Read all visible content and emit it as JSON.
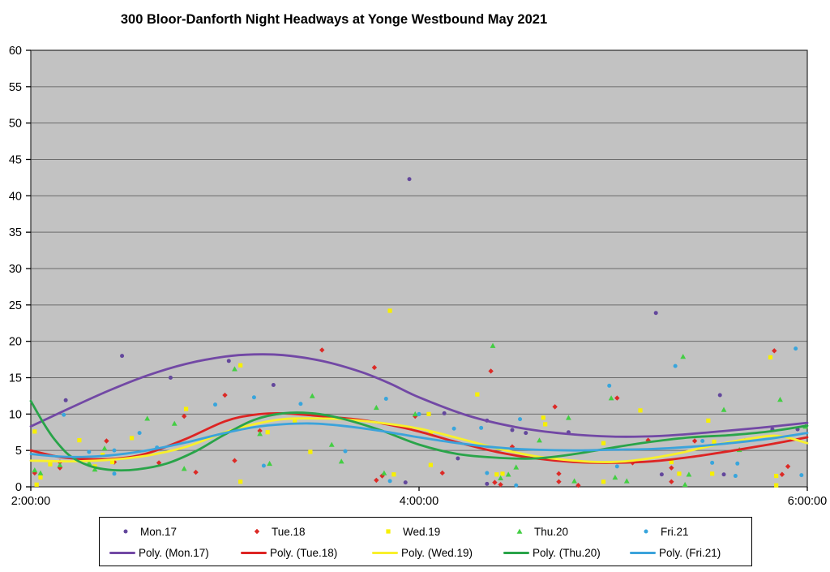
{
  "title": "300 Bloor-Danforth Night Headways at Yonge Westbound May 2021",
  "chart_data": {
    "type": "scatter",
    "title": "300 Bloor-Danforth Night Headways at Yonge Westbound May 2021",
    "xlabel": "",
    "ylabel": "",
    "x_axis": {
      "range_hours": [
        2,
        6
      ],
      "ticks": [
        {
          "label": "2:00:00",
          "t": 2
        },
        {
          "label": "4:00:00",
          "t": 4
        },
        {
          "label": "6:00:00",
          "t": 6
        }
      ]
    },
    "y_axis": {
      "min": 0,
      "max": 60,
      "step": 5,
      "ticks": [
        "0",
        "5",
        "10",
        "15",
        "20",
        "25",
        "30",
        "35",
        "40",
        "45",
        "50",
        "55",
        "60"
      ]
    },
    "grid": true,
    "legend_position": "bottom",
    "style": {
      "plot_bg": "#C2C2C2",
      "grid_color": "#6B6B6B",
      "border_color": "#2A2A2A",
      "axis_color": "#000000",
      "legend_border": "#000000",
      "legend_bg": "#FFFFFF"
    },
    "series": [
      {
        "name": "Mon.17",
        "kind": "scatter",
        "marker": "circle",
        "color": "#63479C",
        "points": [
          [
            2.18,
            11.9
          ],
          [
            2.47,
            18.0
          ],
          [
            2.72,
            15.0
          ],
          [
            3.02,
            17.3
          ],
          [
            3.25,
            14.0
          ],
          [
            3.95,
            42.3
          ],
          [
            3.93,
            0.6
          ],
          [
            4.13,
            10.1
          ],
          [
            4.2,
            3.9
          ],
          [
            4.35,
            9.1
          ],
          [
            4.35,
            0.4
          ],
          [
            4.48,
            7.8
          ],
          [
            4.55,
            7.4
          ],
          [
            4.77,
            7.5
          ],
          [
            5.22,
            23.9
          ],
          [
            5.25,
            1.7
          ],
          [
            5.55,
            12.6
          ],
          [
            5.57,
            1.7
          ],
          [
            5.68,
            6.4
          ],
          [
            5.82,
            7.9
          ],
          [
            5.95,
            7.9
          ]
        ]
      },
      {
        "name": "Tue.18",
        "kind": "scatter",
        "marker": "diamond",
        "color": "#DC2A26",
        "points": [
          [
            2.02,
            1.9
          ],
          [
            2.15,
            3.4
          ],
          [
            2.15,
            2.6
          ],
          [
            2.39,
            6.3
          ],
          [
            2.43,
            3.4
          ],
          [
            2.66,
            3.3
          ],
          [
            2.79,
            9.7
          ],
          [
            2.85,
            2.0
          ],
          [
            3.0,
            12.6
          ],
          [
            3.05,
            3.6
          ],
          [
            3.18,
            7.7
          ],
          [
            3.5,
            18.8
          ],
          [
            3.77,
            16.4
          ],
          [
            3.78,
            0.9
          ],
          [
            3.81,
            1.5
          ],
          [
            3.98,
            9.7
          ],
          [
            4.12,
            1.9
          ],
          [
            4.37,
            15.9
          ],
          [
            4.39,
            0.6
          ],
          [
            4.42,
            0.3
          ],
          [
            4.48,
            5.5
          ],
          [
            4.7,
            11.0
          ],
          [
            4.72,
            1.8
          ],
          [
            4.72,
            0.7
          ],
          [
            4.82,
            0.2
          ],
          [
            5.02,
            12.2
          ],
          [
            5.1,
            3.3
          ],
          [
            5.18,
            6.4
          ],
          [
            5.3,
            2.6
          ],
          [
            5.3,
            0.7
          ],
          [
            5.42,
            6.3
          ],
          [
            5.83,
            18.7
          ],
          [
            5.87,
            1.7
          ],
          [
            5.9,
            2.8
          ]
        ]
      },
      {
        "name": "Wed.19",
        "kind": "scatter",
        "marker": "square",
        "color": "#F7F000",
        "points": [
          [
            2.02,
            7.6
          ],
          [
            2.03,
            0.3
          ],
          [
            2.05,
            1.3
          ],
          [
            2.1,
            3.1
          ],
          [
            2.25,
            6.4
          ],
          [
            2.33,
            2.8
          ],
          [
            2.37,
            4.4
          ],
          [
            2.42,
            3.4
          ],
          [
            2.52,
            6.7
          ],
          [
            2.8,
            10.7
          ],
          [
            3.08,
            16.7
          ],
          [
            3.08,
            0.7
          ],
          [
            3.22,
            7.5
          ],
          [
            3.36,
            9.1
          ],
          [
            3.44,
            4.8
          ],
          [
            3.85,
            24.2
          ],
          [
            3.87,
            1.7
          ],
          [
            4.05,
            10.0
          ],
          [
            4.06,
            7.3
          ],
          [
            4.06,
            3.0
          ],
          [
            4.3,
            12.7
          ],
          [
            4.4,
            1.7
          ],
          [
            4.43,
            1.8
          ],
          [
            4.64,
            9.5
          ],
          [
            4.65,
            8.6
          ],
          [
            4.95,
            6.0
          ],
          [
            4.95,
            0.7
          ],
          [
            5.14,
            10.5
          ],
          [
            5.3,
            3.4
          ],
          [
            5.34,
            1.8
          ],
          [
            5.49,
            9.1
          ],
          [
            5.51,
            1.8
          ],
          [
            5.52,
            6.2
          ],
          [
            5.81,
            17.8
          ],
          [
            5.84,
            1.5
          ],
          [
            5.84,
            0.2
          ]
        ]
      },
      {
        "name": "Thu.20",
        "kind": "scatter",
        "marker": "triangle",
        "color": "#43CE43",
        "points": [
          [
            2.02,
            2.3
          ],
          [
            2.05,
            1.9
          ],
          [
            2.15,
            3.0
          ],
          [
            2.3,
            3.3
          ],
          [
            2.33,
            2.4
          ],
          [
            2.38,
            5.3
          ],
          [
            2.6,
            9.4
          ],
          [
            2.74,
            8.7
          ],
          [
            2.79,
            2.5
          ],
          [
            3.05,
            16.2
          ],
          [
            3.18,
            7.3
          ],
          [
            3.23,
            3.2
          ],
          [
            3.45,
            12.5
          ],
          [
            3.55,
            5.8
          ],
          [
            3.6,
            3.5
          ],
          [
            3.78,
            10.9
          ],
          [
            3.82,
            1.9
          ],
          [
            3.98,
            10.0
          ],
          [
            4.38,
            19.4
          ],
          [
            4.42,
            1.2
          ],
          [
            4.46,
            1.7
          ],
          [
            4.5,
            2.7
          ],
          [
            4.62,
            6.4
          ],
          [
            4.77,
            9.5
          ],
          [
            4.8,
            0.8
          ],
          [
            4.99,
            12.2
          ],
          [
            5.01,
            1.3
          ],
          [
            5.07,
            0.8
          ],
          [
            5.36,
            17.9
          ],
          [
            5.37,
            0.3
          ],
          [
            5.39,
            1.7
          ],
          [
            5.57,
            10.6
          ],
          [
            5.65,
            5.1
          ],
          [
            5.86,
            12.0
          ],
          [
            5.99,
            8.3
          ]
        ]
      },
      {
        "name": "Fri.21",
        "kind": "scatter",
        "marker": "circle",
        "color": "#38A5DC",
        "points": [
          [
            2.17,
            9.9
          ],
          [
            2.3,
            4.8
          ],
          [
            2.43,
            5.0
          ],
          [
            2.43,
            1.8
          ],
          [
            2.56,
            7.4
          ],
          [
            2.65,
            5.4
          ],
          [
            2.95,
            11.3
          ],
          [
            3.15,
            12.3
          ],
          [
            3.2,
            2.9
          ],
          [
            3.39,
            11.4
          ],
          [
            3.62,
            4.9
          ],
          [
            3.83,
            12.1
          ],
          [
            3.85,
            0.8
          ],
          [
            4.0,
            10.0
          ],
          [
            4.18,
            8.0
          ],
          [
            4.32,
            8.1
          ],
          [
            4.35,
            1.9
          ],
          [
            4.52,
            9.3
          ],
          [
            4.5,
            0.2
          ],
          [
            4.98,
            13.9
          ],
          [
            5.02,
            2.8
          ],
          [
            5.32,
            16.6
          ],
          [
            5.46,
            6.3
          ],
          [
            5.51,
            3.3
          ],
          [
            5.63,
            1.5
          ],
          [
            5.64,
            3.2
          ],
          [
            5.94,
            19.0
          ],
          [
            5.97,
            1.6
          ]
        ]
      },
      {
        "name": "Poly. (Mon.17)",
        "kind": "trend",
        "color": "#7248A5",
        "points": [
          [
            2.0,
            8.3
          ],
          [
            2.2,
            10.8
          ],
          [
            2.4,
            13.2
          ],
          [
            2.6,
            15.3
          ],
          [
            2.8,
            16.9
          ],
          [
            3.0,
            17.9
          ],
          [
            3.15,
            18.2
          ],
          [
            3.3,
            18.1
          ],
          [
            3.5,
            17.3
          ],
          [
            3.7,
            15.8
          ],
          [
            3.85,
            14.2
          ],
          [
            4.0,
            12.3
          ],
          [
            4.25,
            9.8
          ],
          [
            4.5,
            8.2
          ],
          [
            4.75,
            7.3
          ],
          [
            5.0,
            6.9
          ],
          [
            5.25,
            7.0
          ],
          [
            5.5,
            7.5
          ],
          [
            5.75,
            8.1
          ],
          [
            6.0,
            8.8
          ]
        ]
      },
      {
        "name": "Poly. (Tue.18)",
        "kind": "trend",
        "color": "#DD2423",
        "points": [
          [
            2.0,
            5.0
          ],
          [
            2.15,
            4.1
          ],
          [
            2.3,
            3.8
          ],
          [
            2.45,
            3.9
          ],
          [
            2.6,
            4.6
          ],
          [
            2.8,
            6.6
          ],
          [
            3.0,
            9.0
          ],
          [
            3.15,
            9.9
          ],
          [
            3.3,
            10.1
          ],
          [
            3.5,
            9.7
          ],
          [
            3.7,
            9.2
          ],
          [
            3.85,
            8.5
          ],
          [
            4.0,
            7.6
          ],
          [
            4.2,
            6.1
          ],
          [
            4.4,
            4.8
          ],
          [
            4.6,
            3.9
          ],
          [
            4.8,
            3.4
          ],
          [
            5.0,
            3.3
          ],
          [
            5.2,
            3.5
          ],
          [
            5.4,
            4.1
          ],
          [
            5.6,
            4.9
          ],
          [
            5.8,
            5.8
          ],
          [
            6.0,
            6.8
          ]
        ]
      },
      {
        "name": "Poly. (Wed.19)",
        "kind": "trend",
        "color": "#F8F02B",
        "points": [
          [
            2.0,
            3.6
          ],
          [
            2.2,
            3.5
          ],
          [
            2.4,
            3.7
          ],
          [
            2.6,
            4.3
          ],
          [
            2.8,
            5.5
          ],
          [
            3.0,
            7.5
          ],
          [
            3.15,
            8.6
          ],
          [
            3.3,
            9.3
          ],
          [
            3.45,
            9.4
          ],
          [
            3.6,
            9.3
          ],
          [
            3.8,
            8.8
          ],
          [
            4.0,
            8.0
          ],
          [
            4.2,
            6.7
          ],
          [
            4.4,
            5.3
          ],
          [
            4.6,
            4.2
          ],
          [
            4.8,
            3.6
          ],
          [
            4.95,
            3.4
          ],
          [
            5.1,
            3.6
          ],
          [
            5.3,
            4.4
          ],
          [
            5.5,
            5.6
          ],
          [
            5.7,
            6.6
          ],
          [
            5.85,
            7.0
          ],
          [
            6.0,
            6.0
          ]
        ]
      },
      {
        "name": "Poly. (Thu.20)",
        "kind": "trend",
        "color": "#29A449",
        "points": [
          [
            2.0,
            11.8
          ],
          [
            2.06,
            9.0
          ],
          [
            2.12,
            6.6
          ],
          [
            2.2,
            4.3
          ],
          [
            2.3,
            2.9
          ],
          [
            2.42,
            2.3
          ],
          [
            2.55,
            2.4
          ],
          [
            2.7,
            3.2
          ],
          [
            2.85,
            4.9
          ],
          [
            3.0,
            7.2
          ],
          [
            3.15,
            9.2
          ],
          [
            3.3,
            10.1
          ],
          [
            3.45,
            10.1
          ],
          [
            3.6,
            9.4
          ],
          [
            3.8,
            7.8
          ],
          [
            4.0,
            5.8
          ],
          [
            4.2,
            4.5
          ],
          [
            4.4,
            4.0
          ],
          [
            4.6,
            3.9
          ],
          [
            4.8,
            4.5
          ],
          [
            5.0,
            5.4
          ],
          [
            5.2,
            6.2
          ],
          [
            5.4,
            6.8
          ],
          [
            5.6,
            7.1
          ],
          [
            5.8,
            7.6
          ],
          [
            6.0,
            8.4
          ]
        ]
      },
      {
        "name": "Poly. (Fri.21)",
        "kind": "trend",
        "color": "#3BA3DB",
        "points": [
          [
            2.0,
            4.5
          ],
          [
            2.2,
            4.1
          ],
          [
            2.4,
            4.3
          ],
          [
            2.6,
            5.0
          ],
          [
            2.8,
            6.1
          ],
          [
            3.0,
            7.4
          ],
          [
            3.15,
            8.2
          ],
          [
            3.3,
            8.6
          ],
          [
            3.45,
            8.7
          ],
          [
            3.6,
            8.4
          ],
          [
            3.8,
            7.7
          ],
          [
            4.0,
            6.8
          ],
          [
            4.2,
            6.0
          ],
          [
            4.4,
            5.4
          ],
          [
            4.6,
            5.1
          ],
          [
            4.8,
            5.0
          ],
          [
            5.0,
            5.1
          ],
          [
            5.2,
            5.2
          ],
          [
            5.4,
            5.5
          ],
          [
            5.6,
            6.0
          ],
          [
            5.8,
            6.6
          ],
          [
            6.0,
            7.4
          ]
        ]
      }
    ],
    "legend": {
      "row1": [
        {
          "label": "Mon.17",
          "marker": "circle",
          "color": "#63479C"
        },
        {
          "label": "Tue.18",
          "marker": "diamond",
          "color": "#DC2A26"
        },
        {
          "label": "Wed.19",
          "marker": "square",
          "color": "#F7F000"
        },
        {
          "label": "Thu.20",
          "marker": "triangle",
          "color": "#43CE43"
        },
        {
          "label": "Fri.21",
          "marker": "circle",
          "color": "#38A5DC"
        }
      ],
      "row2": [
        {
          "label": "Poly. (Mon.17)",
          "color": "#7248A5"
        },
        {
          "label": "Poly. (Tue.18)",
          "color": "#DD2423"
        },
        {
          "label": "Poly. (Wed.19)",
          "color": "#F8F02B"
        },
        {
          "label": "Poly. (Thu.20)",
          "color": "#29A449"
        },
        {
          "label": "Poly. (Fri.21)",
          "color": "#3BA3DB"
        }
      ]
    }
  }
}
